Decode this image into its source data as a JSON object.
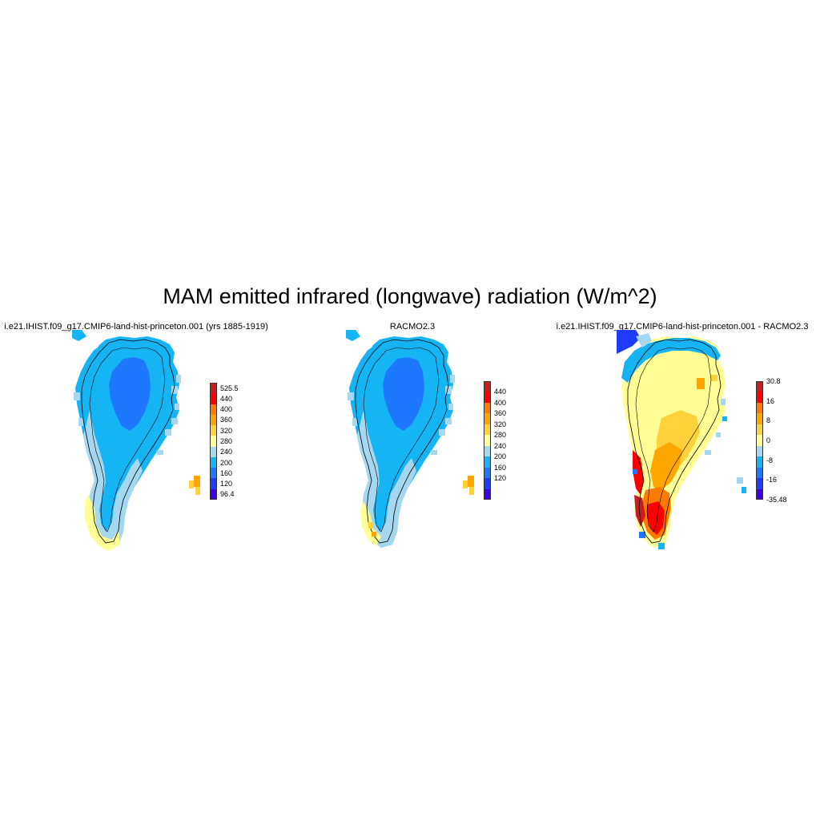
{
  "figure": {
    "title": "MAM emitted infrared (longwave) radiation (W/m^2)"
  },
  "panels": [
    {
      "id": "p1",
      "title": "i.e21.IHIST.f09_g17.CMIP6-land-hist-princeton.001 (yrs 1885-1919)",
      "colorbar": {
        "labels": [
          "525.5",
          "440",
          "400",
          "360",
          "320",
          "280",
          "240",
          "200",
          "160",
          "120",
          "96.4"
        ],
        "colors": [
          "#c81e1e",
          "#ff0000",
          "#ff7a00",
          "#ffa500",
          "#ffd23c",
          "#ffff96",
          "#a5d7f0",
          "#14b4f5",
          "#1e78ff",
          "#1e3cff",
          "#3c00e6"
        ]
      }
    },
    {
      "id": "p2",
      "title": "RACMO2.3",
      "colorbar": {
        "labels": [
          "440",
          "400",
          "360",
          "320",
          "280",
          "240",
          "200",
          "160",
          "120"
        ],
        "colors": [
          "#c81e1e",
          "#ff0000",
          "#ff7a00",
          "#ffa500",
          "#ffd23c",
          "#ffff96",
          "#a5d7f0",
          "#14b4f5",
          "#1e78ff",
          "#1e3cff",
          "#3c00e6"
        ]
      }
    },
    {
      "id": "p3",
      "title": "i.e21.IHIST.f09_g17.CMIP6-land-hist-princeton.001 - RACMO2.3",
      "colorbar": {
        "labels": [
          "30.8",
          "16",
          "8",
          "0",
          "-8",
          "-16",
          "-35.48"
        ],
        "colors": [
          "#c81e1e",
          "#ff0000",
          "#ff7a00",
          "#ffa500",
          "#ffd23c",
          "#ffff96",
          "#a5d7f0",
          "#14b4f5",
          "#1e78ff",
          "#1e3cff",
          "#3c00e6"
        ]
      }
    }
  ]
}
